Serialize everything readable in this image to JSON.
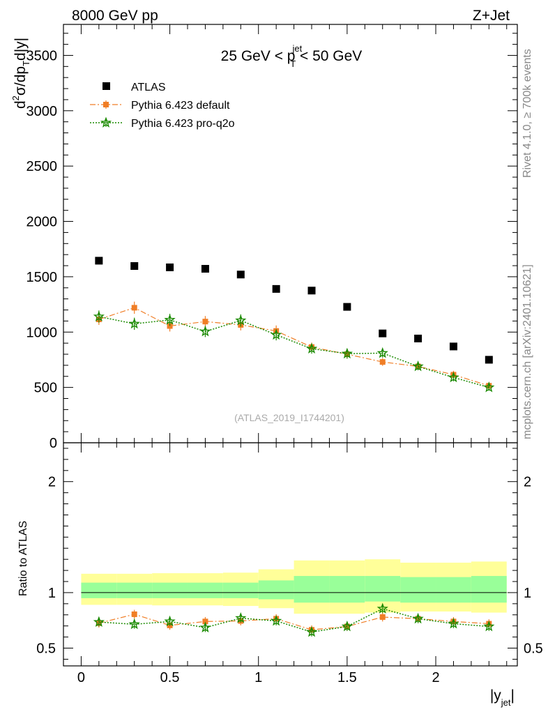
{
  "header": {
    "left": "8000 GeV pp",
    "right": "Z+Jet"
  },
  "side": {
    "rivet": "Rivet 4.1.0, ≥ 700k events",
    "mcplots": "mcplots.cern.ch [arXiv:2401.10621]"
  },
  "chart_data": [
    {
      "type": "scatter",
      "panel": "main",
      "title_parts": {
        "pre": "25 GeV < p",
        "sup": "jet",
        "sub": "T",
        "post": " < 50 GeV"
      },
      "ylabel": "d²σ/dp_T d|y|",
      "ylabel_parts": {
        "a": "d",
        "sup1": "2",
        "b": "σ/dp",
        "sub1": "T",
        "c": "d|y|"
      },
      "annotation": "(ATLAS_2019_I1744201)",
      "xlim": [
        -0.1,
        2.46
      ],
      "ylim": [
        0,
        3780
      ],
      "yticks": [
        0,
        500,
        1000,
        1500,
        2000,
        2500,
        3000,
        3500
      ],
      "ytick_labels": [
        "0",
        "500",
        "1000",
        "1500",
        "2000",
        "2500",
        "3000",
        "3500"
      ],
      "x": [
        0.1,
        0.3,
        0.5,
        0.7,
        0.9,
        1.1,
        1.3,
        1.5,
        1.7,
        1.9,
        2.1,
        2.3
      ],
      "series": [
        {
          "name": "ATLAS",
          "color": "#000000",
          "marker": "square",
          "values": [
            1645,
            1597,
            1585,
            1572,
            1520,
            1390,
            1375,
            1228,
            988,
            942,
            870,
            750
          ],
          "errors": [
            15,
            15,
            15,
            15,
            15,
            15,
            15,
            15,
            15,
            15,
            15,
            15
          ]
        },
        {
          "name": "Pythia 6.423 default",
          "color": "#f07e26",
          "marker": "square-small",
          "line": "dashdot",
          "values": [
            1115,
            1220,
            1055,
            1095,
            1065,
            1010,
            865,
            800,
            730,
            690,
            615,
            515
          ],
          "errors": [
            50,
            55,
            50,
            50,
            50,
            50,
            40,
            40,
            35,
            35,
            35,
            30
          ]
        },
        {
          "name": "Pythia 6.423 pro-q2o",
          "color": "#1a8a00",
          "marker": "star",
          "line": "dotted",
          "values": [
            1140,
            1075,
            1110,
            1005,
            1105,
            975,
            850,
            805,
            810,
            690,
            590,
            500
          ],
          "errors": [
            55,
            55,
            55,
            50,
            55,
            50,
            45,
            45,
            40,
            35,
            35,
            30
          ]
        }
      ]
    },
    {
      "type": "scatter",
      "panel": "ratio",
      "ylabel": "Ratio to ATLAS",
      "xlabel": "|y_jet|",
      "xlabel_parts": {
        "a": "|y",
        "sub": "jet",
        "b": "|"
      },
      "xlim": [
        -0.1,
        2.46
      ],
      "ylim": [
        0.34,
        2.35
      ],
      "yticks": [
        0.5,
        1,
        2
      ],
      "ytick_labels": [
        "0.5",
        "1",
        "2"
      ],
      "xticks": [
        0,
        0.5,
        1,
        1.5,
        2
      ],
      "xtick_labels": [
        "0",
        "0.5",
        "1",
        "1.5",
        "2"
      ],
      "x": [
        0.1,
        0.3,
        0.5,
        0.7,
        0.9,
        1.1,
        1.3,
        1.5,
        1.7,
        1.9,
        2.1,
        2.3
      ],
      "bins": [
        [
          0.0,
          0.2
        ],
        [
          0.2,
          0.4
        ],
        [
          0.4,
          0.6
        ],
        [
          0.6,
          0.8
        ],
        [
          0.8,
          1.0
        ],
        [
          1.0,
          1.2
        ],
        [
          1.2,
          1.4
        ],
        [
          1.4,
          1.6
        ],
        [
          1.6,
          1.8
        ],
        [
          1.8,
          2.0
        ],
        [
          2.0,
          2.2
        ],
        [
          2.2,
          2.4
        ]
      ],
      "band_total": [
        [
          0.89,
          1.17
        ],
        [
          0.89,
          1.17
        ],
        [
          0.885,
          1.175
        ],
        [
          0.885,
          1.175
        ],
        [
          0.88,
          1.18
        ],
        [
          0.86,
          1.21
        ],
        [
          0.81,
          1.29
        ],
        [
          0.81,
          1.29
        ],
        [
          0.82,
          1.3
        ],
        [
          0.83,
          1.27
        ],
        [
          0.83,
          1.27
        ],
        [
          0.82,
          1.28
        ]
      ],
      "band_stat": [
        [
          0.95,
          1.09
        ],
        [
          0.95,
          1.09
        ],
        [
          0.95,
          1.09
        ],
        [
          0.95,
          1.09
        ],
        [
          0.95,
          1.09
        ],
        [
          0.94,
          1.11
        ],
        [
          0.91,
          1.15
        ],
        [
          0.91,
          1.15
        ],
        [
          0.92,
          1.15
        ],
        [
          0.91,
          1.14
        ],
        [
          0.91,
          1.14
        ],
        [
          0.91,
          1.15
        ]
      ],
      "band_colors": {
        "total": "#ffff99",
        "stat": "#99ff99"
      },
      "series": [
        {
          "name": "Pythia 6.423 default",
          "color": "#f07e26",
          "marker": "square-small",
          "line": "dashdot",
          "values": [
            0.725,
            0.805,
            0.705,
            0.74,
            0.745,
            0.765,
            0.665,
            0.695,
            0.78,
            0.765,
            0.74,
            0.72
          ],
          "errors": [
            0.04,
            0.04,
            0.04,
            0.04,
            0.04,
            0.04,
            0.04,
            0.04,
            0.04,
            0.04,
            0.04,
            0.04
          ]
        },
        {
          "name": "Pythia 6.423 pro-q2o",
          "color": "#1a8a00",
          "marker": "star",
          "line": "dotted",
          "values": [
            0.735,
            0.715,
            0.74,
            0.685,
            0.77,
            0.745,
            0.645,
            0.695,
            0.855,
            0.765,
            0.72,
            0.695
          ],
          "errors": [
            0.04,
            0.04,
            0.04,
            0.04,
            0.04,
            0.04,
            0.04,
            0.04,
            0.04,
            0.04,
            0.04,
            0.04
          ]
        }
      ]
    }
  ]
}
